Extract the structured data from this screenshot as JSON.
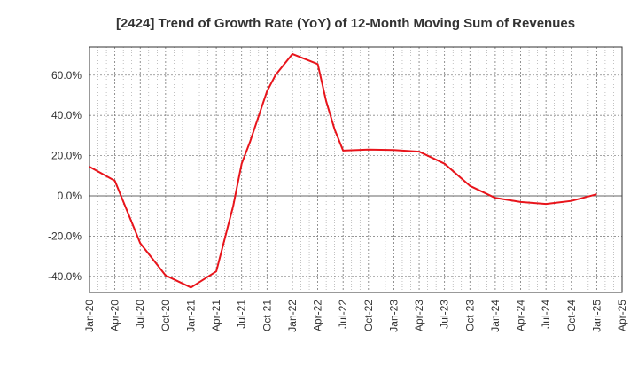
{
  "chart_data": {
    "type": "line",
    "title": "[2424]  Trend of Growth Rate (YoY) of 12-Month Moving Sum of Revenues",
    "xlabel": "",
    "ylabel": "",
    "ylim": [
      -48,
      74
    ],
    "yticks": [
      -40,
      -20,
      0,
      20,
      40,
      60
    ],
    "ytick_labels": [
      "-40.0%",
      "-20.0%",
      "0.0%",
      "20.0%",
      "40.0%",
      "60.0%"
    ],
    "xticks": [
      "Jan-20",
      "Apr-20",
      "Jul-20",
      "Oct-20",
      "Jan-21",
      "Apr-21",
      "Jul-21",
      "Oct-21",
      "Jan-22",
      "Apr-22",
      "Jul-22",
      "Oct-22",
      "Jan-23",
      "Apr-23",
      "Jul-23",
      "Oct-23",
      "Jan-24",
      "Apr-24",
      "Jul-24",
      "Oct-24",
      "Jan-25",
      "Apr-25"
    ],
    "grid": true,
    "series": [
      {
        "color": "#e8141b",
        "x": [
          "Jan-20",
          "Apr-20",
          "Jul-20",
          "Oct-20",
          "Jan-21",
          "Apr-21",
          "Jun-21",
          "Jul-21",
          "Aug-21",
          "Oct-21",
          "Nov-21",
          "Jan-22",
          "Apr-22",
          "May-22",
          "Jun-22",
          "Jul-22",
          "Oct-22",
          "Jan-23",
          "Apr-23",
          "Jul-23",
          "Oct-23",
          "Jan-24",
          "Apr-24",
          "Jul-24",
          "Oct-24",
          "Jan-25"
        ],
        "values": [
          14.5,
          7.5,
          -23.5,
          -39.5,
          -45.5,
          -37.5,
          -5,
          16,
          27,
          52,
          60,
          70.5,
          65.5,
          47,
          33,
          22.5,
          23,
          22.8,
          22,
          16,
          5,
          -1,
          -3,
          -4,
          -2.5,
          0.8
        ]
      }
    ]
  }
}
